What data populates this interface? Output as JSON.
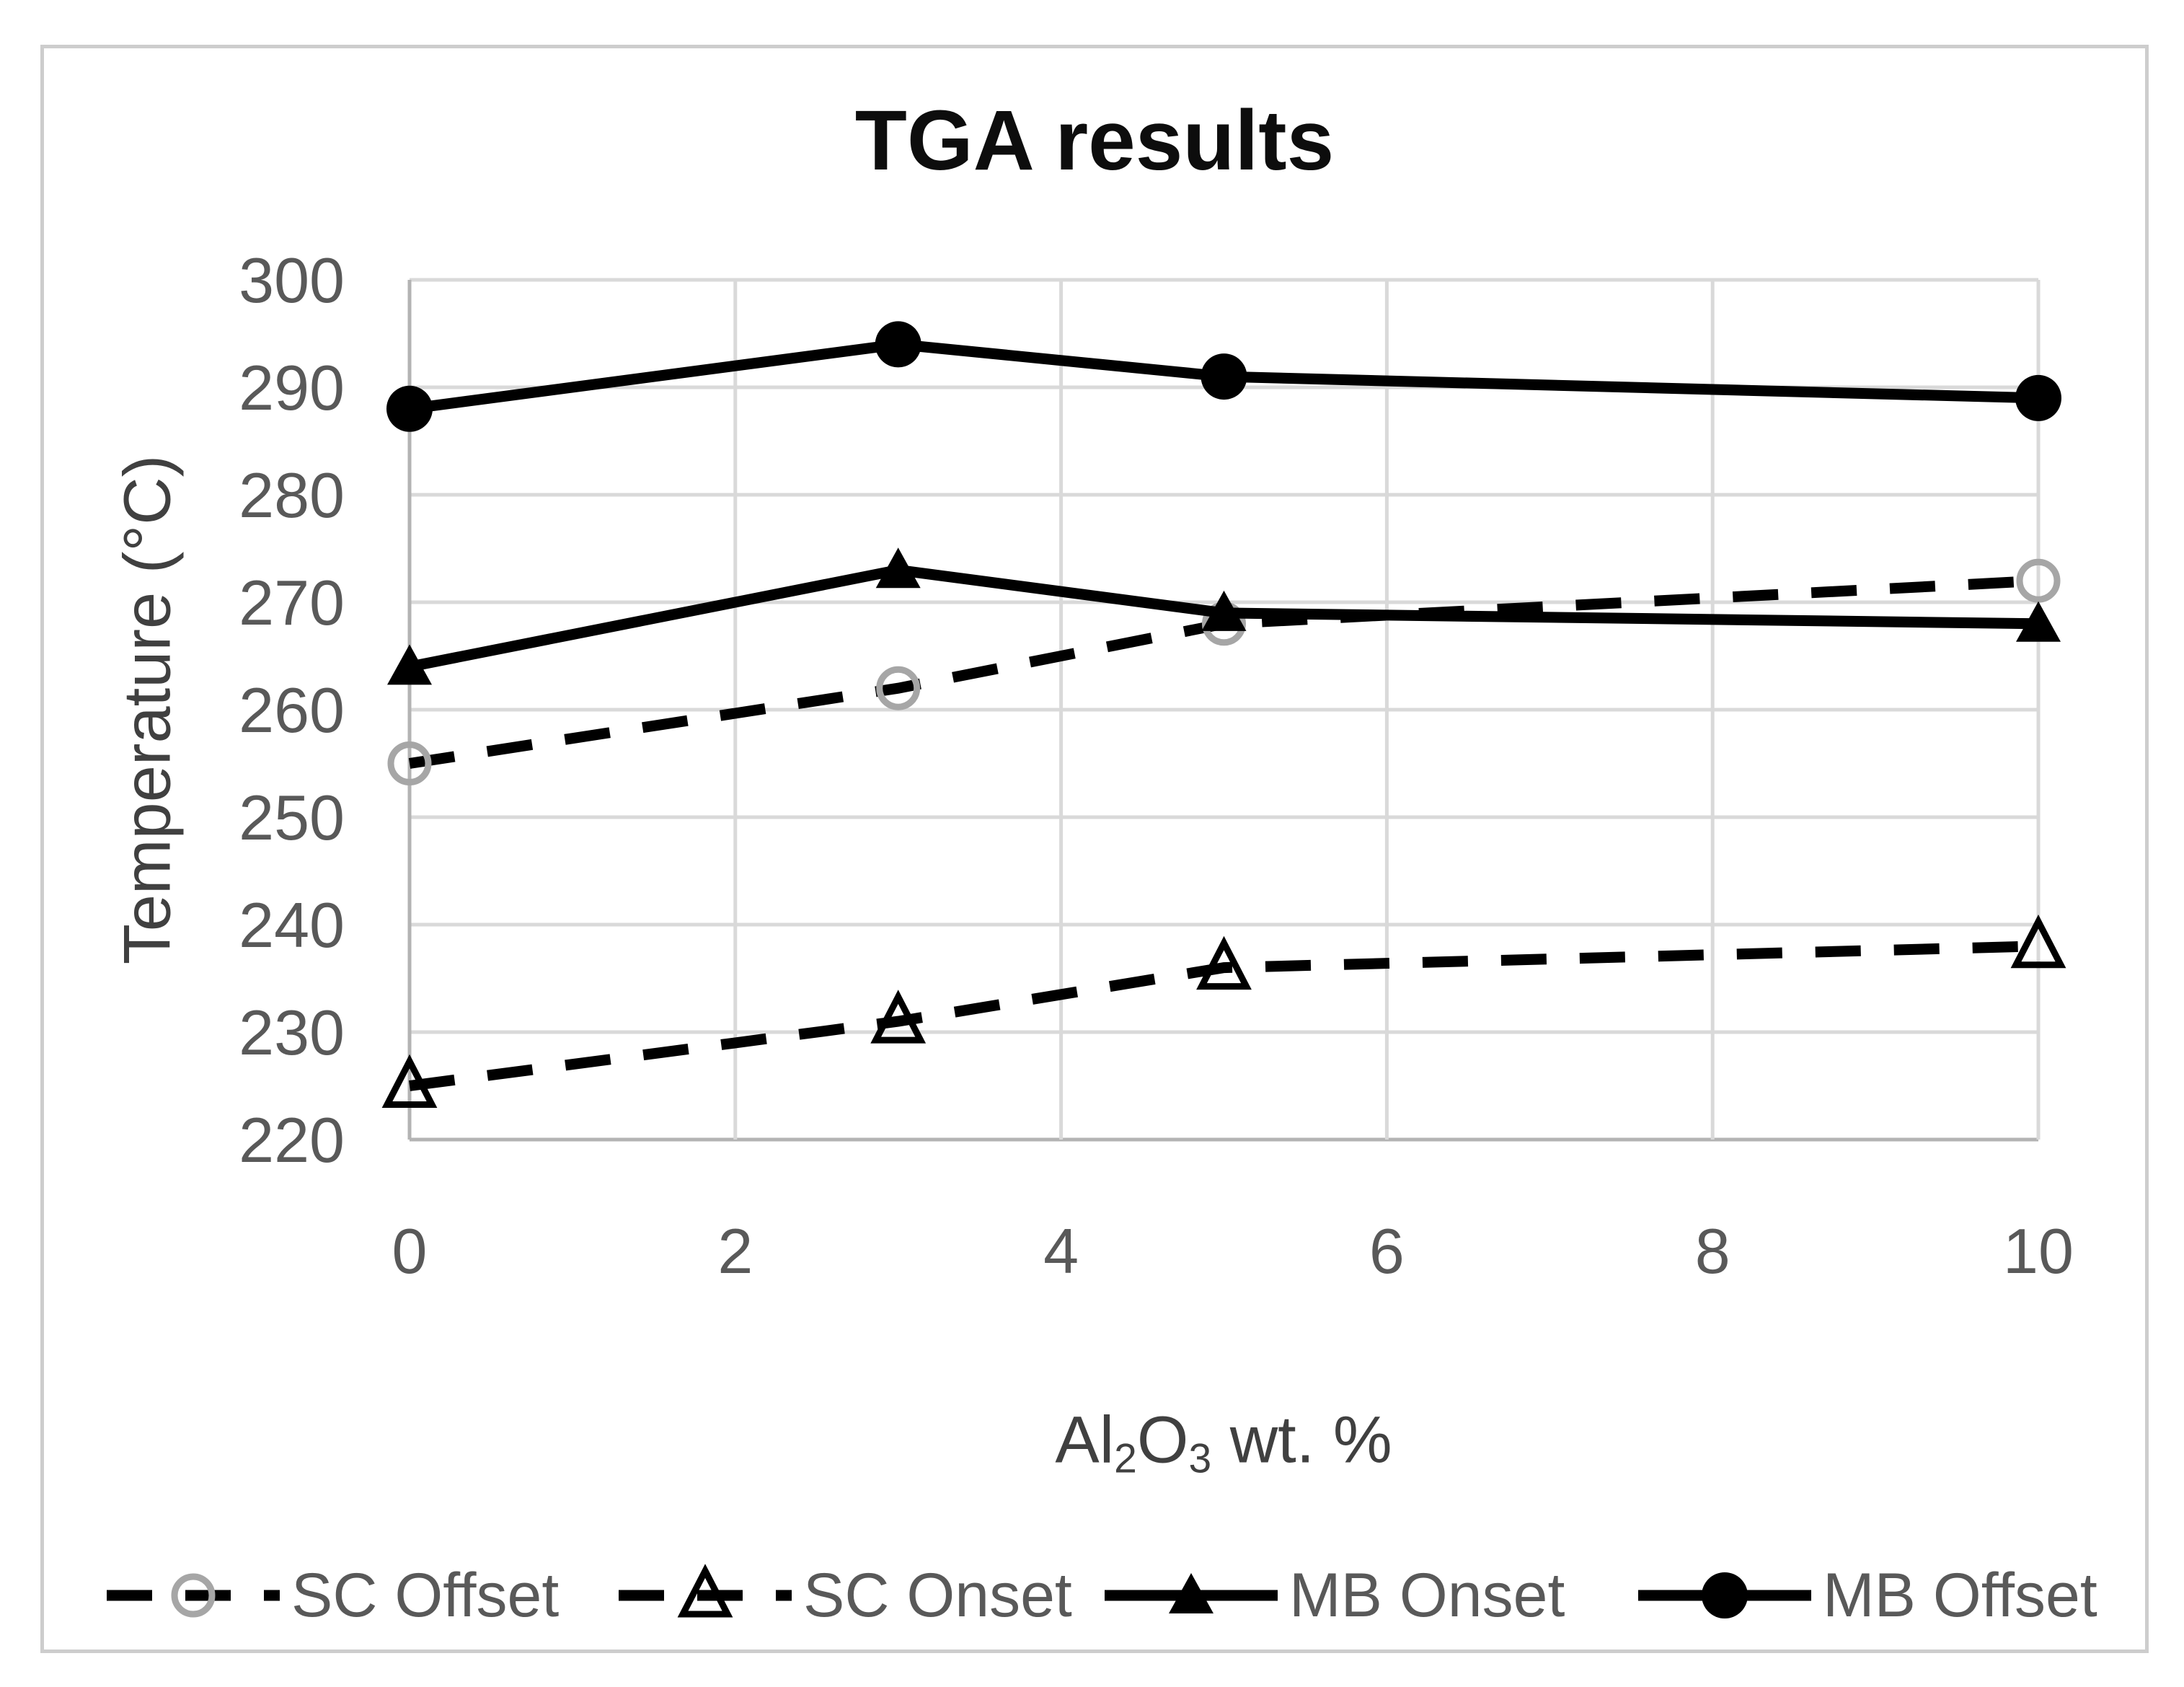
{
  "chart_data": {
    "type": "line",
    "title": "TGA results",
    "ylabel": "Temperature (°C)",
    "xlabel": "Al2O3 wt. %",
    "xlabel_parts": [
      {
        "text": "Al"
      },
      {
        "text": "2",
        "sub": true
      },
      {
        "text": "O"
      },
      {
        "text": "3",
        "sub": true
      },
      {
        "text": " wt. %"
      }
    ],
    "x_ticks": [
      0,
      2,
      4,
      6,
      8,
      10
    ],
    "y_ticks": [
      300,
      290,
      280,
      270,
      260,
      250,
      240,
      230,
      220
    ],
    "xlim": [
      0,
      10
    ],
    "ylim": [
      220,
      300
    ],
    "grid": true,
    "legend_position": "bottom",
    "x": [
      0,
      3,
      5,
      10
    ],
    "series": [
      {
        "name": "SC Offset",
        "values": [
          255,
          262,
          268,
          272
        ],
        "line": "dashed",
        "marker": "circle-open",
        "color": "#000000",
        "marker_color": "#a6a6a6"
      },
      {
        "name": "SC Onset",
        "values": [
          225,
          231,
          236,
          238
        ],
        "line": "dashed",
        "marker": "triangle-open",
        "color": "#000000",
        "marker_color": "#000000"
      },
      {
        "name": "MB Onset",
        "values": [
          264,
          273,
          269,
          268
        ],
        "line": "solid",
        "marker": "triangle-filled",
        "color": "#000000",
        "marker_color": "#000000"
      },
      {
        "name": "MB Offset",
        "values": [
          288,
          294,
          291,
          289
        ],
        "line": "solid",
        "marker": "circle-filled",
        "color": "#000000",
        "marker_color": "#000000"
      }
    ]
  },
  "colors": {
    "tick_label": "#595959",
    "gridline": "#d9d9d9",
    "axis_line": "#b3b3b3",
    "title": "#0d0d0d",
    "axis_title": "#404040",
    "legend_label": "#595959",
    "frame_border": "#cdcdcd",
    "background": "#ffffff"
  }
}
